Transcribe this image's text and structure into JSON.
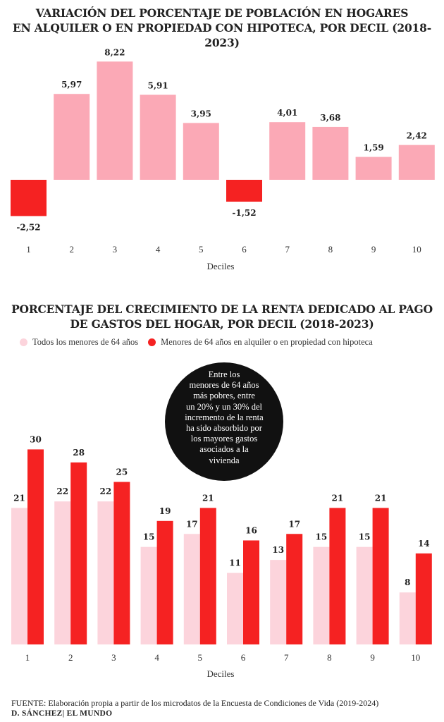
{
  "colors": {
    "positive": "#fba9b6",
    "negative": "#f52222",
    "light": "#fcd4dc",
    "dark": "#f52222"
  },
  "chart_data": [
    {
      "type": "bar",
      "title": "VARIACIÓN DEL PORCENTAJE DE POBLACIÓN EN HOGARES EN ALQUILER O EN PROPIEDAD CON HIPOTECA, POR DECIL (2018-2023)",
      "title_lines": [
        "VARIACIÓN DEL PORCENTAJE DE POBLACIÓN EN HOGARES",
        "EN ALQUILER O EN PROPIEDAD CON HIPOTECA, POR DECIL (2018-2023)"
      ],
      "categories": [
        "1",
        "2",
        "3",
        "4",
        "5",
        "6",
        "7",
        "8",
        "9",
        "10"
      ],
      "values": [
        -2.52,
        5.97,
        8.22,
        5.91,
        3.95,
        -1.52,
        4.01,
        3.68,
        1.59,
        2.42
      ],
      "value_labels": [
        "-2,52",
        "5,97",
        "8,22",
        "5,91",
        "3,95",
        "-1,52",
        "4,01",
        "3,68",
        "1,59",
        "2,42"
      ],
      "xlabel": "Deciles",
      "ylabel": "",
      "grid": false
    },
    {
      "type": "bar",
      "title": "PORCENTAJE DEL CRECIMIENTO DE LA RENTA DEDICADO AL PAGO DE GASTOS DEL HOGAR, POR DECIL (2018-2023)",
      "title_lines": [
        "PORCENTAJE DEL CRECIMIENTO DE LA RENTA DEDICADO AL PAGO",
        "DE GASTOS DEL HOGAR, POR DECIL (2018-2023)"
      ],
      "categories": [
        "1",
        "2",
        "3",
        "4",
        "5",
        "6",
        "7",
        "8",
        "9",
        "10"
      ],
      "series": [
        {
          "name": "Todos los menores de 64 años",
          "values": [
            21,
            22,
            22,
            15,
            17,
            11,
            13,
            15,
            15,
            8
          ]
        },
        {
          "name": "Menores de 64 años en alquiler o en propiedad con hipoteca",
          "values": [
            30,
            28,
            25,
            19,
            21,
            16,
            17,
            21,
            21,
            14
          ]
        }
      ],
      "xlabel": "Deciles",
      "ylabel": "",
      "legend": "top",
      "grid": false,
      "annotation_lines": [
        "Entre los",
        "menores de 64 años",
        "más pobres, entre",
        "un 20% y un 30% del",
        "incremento de la renta",
        "ha sido absorbido por",
        "los mayores gastos",
        "asociados  a la",
        "vivienda"
      ]
    }
  ],
  "footer": {
    "source": "FUENTE: Elaboración propia a partir de los microdatos de la Encuesta de Condiciones de Vida (2019-2024)",
    "credit": "D. SÁNCHEZ| EL MUNDO"
  }
}
